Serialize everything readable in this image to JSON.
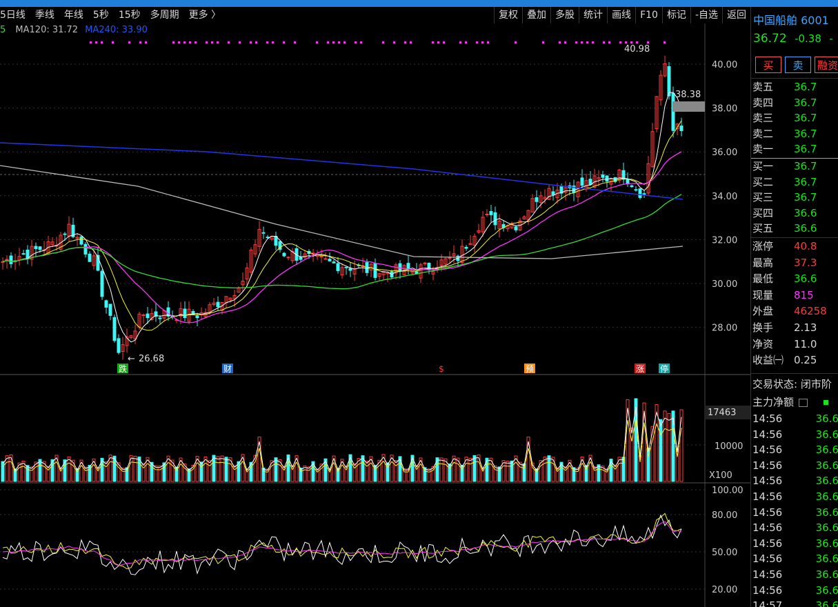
{
  "toolbar": {
    "periods": [
      "5日线",
      "季线",
      "年线",
      "5秒",
      "15秒",
      "多周期",
      "更多 〉"
    ],
    "tools": [
      "复权",
      "叠加",
      "多股",
      "统计",
      "画线",
      "F10",
      "标记",
      "-自选",
      "返回"
    ]
  },
  "ma_legend": {
    "prefix": "5",
    "ma120": "MA120: 31.72",
    "ma240": "MA240: 33.90"
  },
  "colors": {
    "up": "#ff3b3b",
    "down": "#3ff5f5",
    "ma5": "#ffffff",
    "ma10": "#f5f523",
    "ma20": "#ff33ff",
    "ma60": "#33dd33",
    "ma120": "#bbbbbb",
    "ma240": "#2233ee"
  },
  "price_axis": [
    "40.00",
    "38.00",
    "36.00",
    "34.00",
    "32.00",
    "30.00",
    "28.00"
  ],
  "price_labels": {
    "high_mark": "40.98",
    "low_mark": "26.68",
    "current_box": "38.38"
  },
  "event_marks": [
    "跌",
    "财",
    "$",
    "预",
    "涨",
    "停"
  ],
  "volume_axis": {
    "top": "17463",
    "mid": "10000",
    "unit": "X100"
  },
  "osc_axis": [
    "100.00",
    "80.00",
    "50.00",
    "20.00"
  ],
  "quote": {
    "name": "中国船舶 6001",
    "price": "36.72",
    "change": "-0.38",
    "change_suffix": "-",
    "buy": "买",
    "sell": "卖",
    "margin": "融资"
  },
  "orderbook": [
    {
      "label": "卖五",
      "value": "36.7"
    },
    {
      "label": "卖四",
      "value": "36.7"
    },
    {
      "label": "卖三",
      "value": "36.7"
    },
    {
      "label": "卖二",
      "value": "36.7"
    },
    {
      "label": "卖一",
      "value": "36.7"
    },
    {
      "label": "买一",
      "value": "36.7"
    },
    {
      "label": "买二",
      "value": "36.7"
    },
    {
      "label": "买三",
      "value": "36.7"
    },
    {
      "label": "买四",
      "value": "36.6"
    },
    {
      "label": "买五",
      "value": "36.6"
    }
  ],
  "stats": [
    {
      "label": "涨停",
      "value": "40.8",
      "color": "#ff3b3b"
    },
    {
      "label": "最高",
      "value": "37.3",
      "color": "#ff3b3b"
    },
    {
      "label": "最低",
      "value": "36.6",
      "color": "#19e619"
    },
    {
      "label": "现量",
      "value": "815",
      "color": "#ff33ff"
    },
    {
      "label": "外盘",
      "value": "46258",
      "color": "#ff3b3b"
    },
    {
      "label": "换手",
      "value": "2.13",
      "color": "#d8d8d8"
    },
    {
      "label": "净资",
      "value": "11.0",
      "color": "#d8d8d8"
    },
    {
      "label": "收益㈠",
      "value": "0.25",
      "color": "#d8d8d8"
    }
  ],
  "trade_state": "交易状态: 闭市阶",
  "net_inflow_label": "主力净额",
  "ticks": [
    {
      "time": "14:56",
      "price": "36.6"
    },
    {
      "time": "14:56",
      "price": "36.6"
    },
    {
      "time": "14:56",
      "price": "36.6"
    },
    {
      "time": "14:56",
      "price": "36.6"
    },
    {
      "time": "14:56",
      "price": "36.6"
    },
    {
      "time": "14:56",
      "price": "36.6"
    },
    {
      "time": "14:56",
      "price": "36.6"
    },
    {
      "time": "14:56",
      "price": "36.6"
    },
    {
      "time": "14:56",
      "price": "36.6"
    },
    {
      "time": "14:56",
      "price": "36.6"
    },
    {
      "time": "14:56",
      "price": "36.6"
    },
    {
      "time": "14:56",
      "price": "36.6"
    },
    {
      "time": "14:57",
      "price": "36.6"
    }
  ]
}
